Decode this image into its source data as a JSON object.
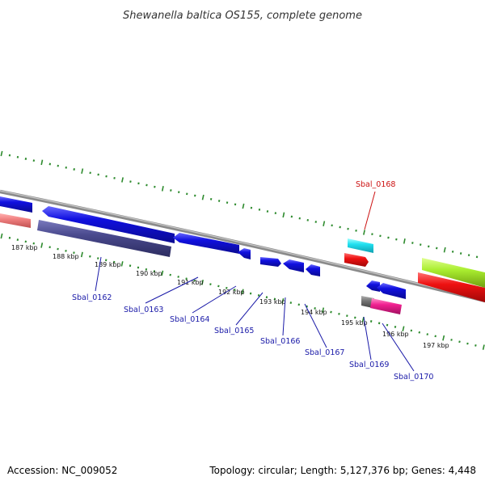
{
  "title": "Shewanella baltica OS155, complete genome",
  "footer": {
    "accession": "Accession: NC_009052",
    "summary": "Topology: circular; Length: 5,127,376 bp; Genes: 4,448"
  },
  "ticks": [
    "187 kbp",
    "188 kbp",
    "189 kbp",
    "190 kbp",
    "191 kbp",
    "192 kbp",
    "193 kbp",
    "194 kbp",
    "195 kbp",
    "196 kbp",
    "197 kbp"
  ],
  "gene_labels": [
    {
      "name": "Sbal_0162",
      "color": "#1a1aa8"
    },
    {
      "name": "Sbal_0163",
      "color": "#1a1aa8"
    },
    {
      "name": "Sbal_0164",
      "color": "#1a1aa8"
    },
    {
      "name": "Sbal_0165",
      "color": "#1a1aa8"
    },
    {
      "name": "Sbal_0166",
      "color": "#1a1aa8"
    },
    {
      "name": "Sbal_0167",
      "color": "#1a1aa8"
    },
    {
      "name": "Sbal_0168",
      "color": "#cc1111"
    },
    {
      "name": "Sbal_0169",
      "color": "#1a1aa8"
    },
    {
      "name": "Sbal_0170",
      "color": "#1a1aa8"
    }
  ],
  "colors": {
    "backbone": "#8a8a8a",
    "tick": "#2e8b2e",
    "blue_gene": "#1010e0",
    "dark_gene": "#4a4a8e",
    "pink_gene": "#f08080",
    "cyan_gene": "#20e0f0",
    "red_gene": "#ee1111",
    "magenta_gene": "#f02090",
    "gray_gene": "#777777",
    "lime_gene": "#aaee30"
  }
}
